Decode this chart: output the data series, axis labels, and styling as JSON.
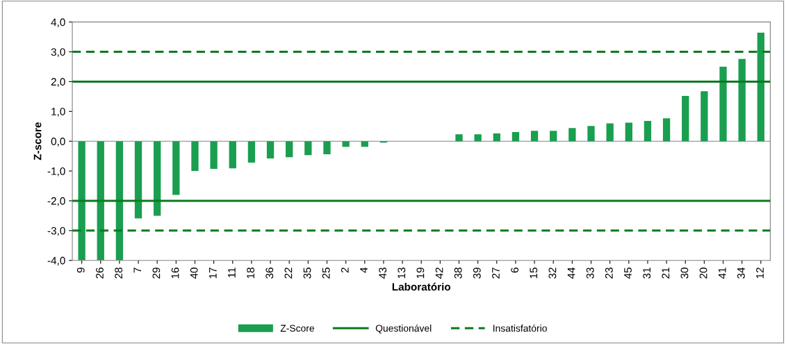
{
  "chart_data": {
    "type": "bar",
    "xlabel": "Laboratório",
    "ylabel": "Z-score",
    "categories": [
      "9",
      "26",
      "28",
      "7",
      "29",
      "16",
      "40",
      "17",
      "11",
      "18",
      "36",
      "22",
      "35",
      "25",
      "2",
      "4",
      "43",
      "13",
      "19",
      "42",
      "38",
      "39",
      "27",
      "6",
      "15",
      "32",
      "44",
      "33",
      "23",
      "45",
      "31",
      "21",
      "30",
      "20",
      "41",
      "34",
      "12"
    ],
    "series": [
      {
        "name": "Z-Score",
        "color": "#1a9e50",
        "values": [
          -4.0,
          -4.0,
          -4.0,
          -2.59,
          -2.5,
          -1.8,
          -1.0,
          -0.93,
          -0.91,
          -0.72,
          -0.58,
          -0.54,
          -0.47,
          -0.44,
          -0.19,
          -0.19,
          -0.05,
          0,
          0,
          0,
          0.23,
          0.23,
          0.26,
          0.31,
          0.35,
          0.35,
          0.44,
          0.51,
          0.6,
          0.62,
          0.68,
          0.77,
          1.52,
          1.68,
          2.5,
          2.76,
          3.64
        ]
      }
    ],
    "ylim": [
      -4,
      4
    ],
    "yticks": [
      {
        "value": -4,
        "label": "-4,0"
      },
      {
        "value": -3,
        "label": "-3,0"
      },
      {
        "value": -2,
        "label": "-2,0"
      },
      {
        "value": -1,
        "label": "-1,0"
      },
      {
        "value": 0,
        "label": "0,0"
      },
      {
        "value": 1,
        "label": "1,0"
      },
      {
        "value": 2,
        "label": "2,0"
      },
      {
        "value": 3,
        "label": "3,0"
      },
      {
        "value": 4,
        "label": "4,0"
      }
    ],
    "ref_lines": [
      {
        "axis": "y",
        "value": 2,
        "label": "Questionável",
        "color": "#0b7a1e",
        "line_style": "solid"
      },
      {
        "axis": "y",
        "value": -2,
        "color": "#0b7a1e",
        "line_style": "solid"
      },
      {
        "axis": "y",
        "value": 3,
        "label": "Insatisfatório",
        "color": "#0b7a1e",
        "line_style": "dashed"
      },
      {
        "axis": "y",
        "value": -3,
        "color": "#0b7a1e",
        "line_style": "dashed"
      }
    ],
    "grid": false,
    "legend": "bottom"
  }
}
